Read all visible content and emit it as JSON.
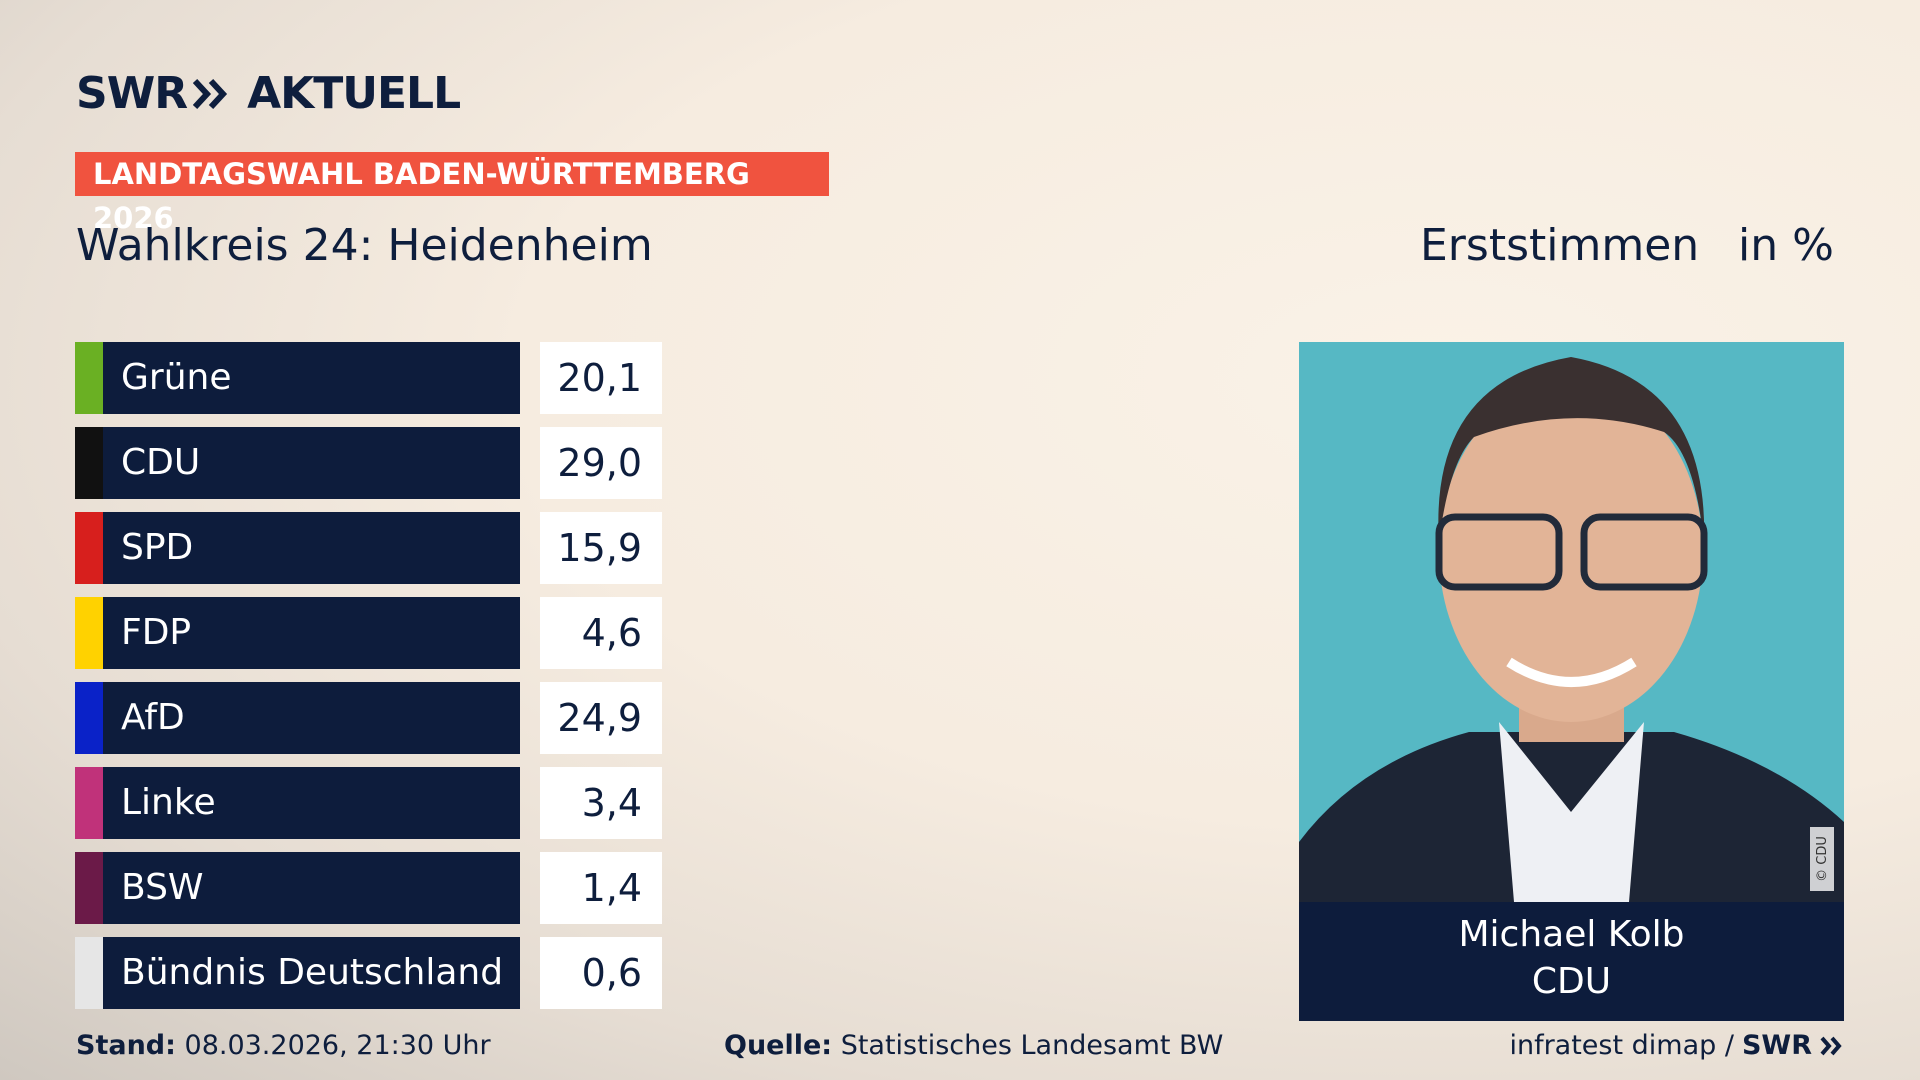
{
  "header": {
    "logo": "SWR",
    "brand": "AKTUELL",
    "banner": "LANDTAGSWAHL BADEN-WÜRTTEMBERG 2026",
    "title": "Wahlkreis 24: Heidenheim",
    "measure": "Erststimmen",
    "unit": "in %"
  },
  "table": {
    "rows": [
      {
        "party": "Grüne",
        "value": "20,1",
        "color": "#6ab023"
      },
      {
        "party": "CDU",
        "value": "29,0",
        "color": "#111111"
      },
      {
        "party": "SPD",
        "value": "15,9",
        "color": "#d71f1d"
      },
      {
        "party": "FDP",
        "value": "4,6",
        "color": "#ffd200"
      },
      {
        "party": "AfD",
        "value": "24,9",
        "color": "#0a22c8"
      },
      {
        "party": "Linke",
        "value": "3,4",
        "color": "#c0327a"
      },
      {
        "party": "BSW",
        "value": "1,4",
        "color": "#6b1a48"
      },
      {
        "party": "Bündnis Deutschland",
        "value": "0,6",
        "color": "#e6e6e6"
      }
    ]
  },
  "candidate": {
    "name": "Michael Kolb",
    "party": "CDU",
    "credit": "© CDU"
  },
  "footer": {
    "stand_label": "Stand:",
    "stand": "08.03.2026, 21:30 Uhr",
    "source_label": "Quelle:",
    "source": "Statistisches Landesamt BW",
    "provider": "infratest dimap /",
    "provider_logo": "SWR"
  }
}
